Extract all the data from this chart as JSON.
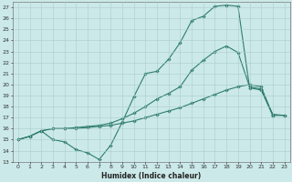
{
  "xlabel": "Humidex (Indice chaleur)",
  "bg_color": "#cce9e9",
  "grid_color": "#aacccc",
  "line_color": "#2e7d6e",
  "xlim": [
    -0.5,
    23.5
  ],
  "ylim": [
    13,
    27.5
  ],
  "yticks": [
    13,
    14,
    15,
    16,
    17,
    18,
    19,
    20,
    21,
    22,
    23,
    24,
    25,
    26,
    27
  ],
  "xticks": [
    0,
    1,
    2,
    3,
    4,
    5,
    6,
    7,
    8,
    9,
    10,
    11,
    12,
    13,
    14,
    15,
    16,
    17,
    18,
    19,
    20,
    21,
    22,
    23
  ],
  "line1_x": [
    0,
    1,
    2,
    3,
    4,
    5,
    6,
    7,
    8,
    9,
    10,
    11,
    12,
    13,
    14,
    15,
    16,
    17,
    18,
    19,
    20,
    21,
    22
  ],
  "line1_y": [
    15.0,
    15.3,
    15.8,
    15.0,
    14.8,
    14.1,
    13.8,
    13.2,
    14.5,
    16.6,
    18.9,
    21.0,
    21.2,
    22.3,
    23.8,
    25.8,
    26.2,
    27.1,
    27.2,
    27.1,
    19.7,
    19.5,
    17.2
  ],
  "line2_x": [
    0,
    1,
    2,
    3,
    4,
    5,
    6,
    7,
    8,
    9,
    10,
    11,
    12,
    13,
    14,
    15,
    16,
    17,
    18,
    19,
    20,
    21,
    22,
    23
  ],
  "line2_y": [
    15.0,
    15.3,
    15.8,
    16.0,
    16.0,
    16.0,
    16.1,
    16.2,
    16.3,
    16.5,
    16.7,
    17.0,
    17.3,
    17.6,
    17.9,
    18.3,
    18.7,
    19.1,
    19.5,
    19.8,
    20.0,
    19.8,
    17.2,
    17.2
  ],
  "line3_x": [
    0,
    1,
    2,
    3,
    4,
    5,
    6,
    7,
    8,
    9,
    10,
    11,
    12,
    13,
    14,
    15,
    16,
    17,
    18,
    19,
    20,
    21,
    22,
    23
  ],
  "line3_y": [
    15.0,
    15.3,
    15.8,
    16.0,
    16.0,
    16.1,
    16.2,
    16.3,
    16.5,
    16.9,
    17.4,
    18.0,
    18.7,
    19.2,
    19.8,
    21.3,
    22.2,
    23.0,
    23.5,
    22.9,
    19.8,
    19.6,
    17.3,
    17.2
  ]
}
